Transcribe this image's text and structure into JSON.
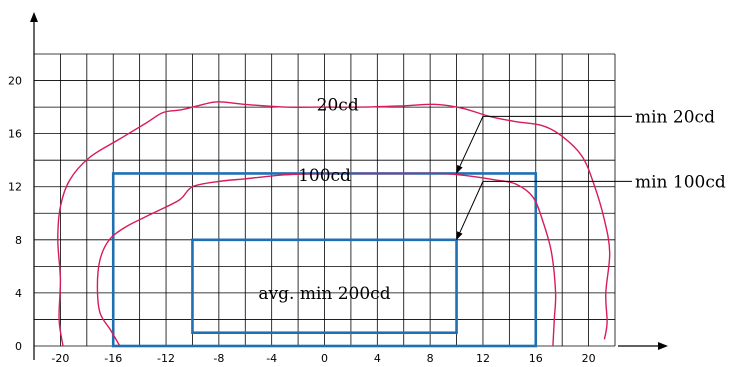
{
  "chart_data": {
    "type": "line",
    "title": "",
    "xlabel": "",
    "ylabel": "",
    "xlim": [
      -22,
      22
    ],
    "ylim": [
      0,
      22
    ],
    "x_ticks": [
      -20,
      -16,
      -12,
      -8,
      -4,
      0,
      4,
      8,
      12,
      16,
      20
    ],
    "y_ticks": [
      0,
      4,
      8,
      12,
      16,
      20
    ],
    "grid": true,
    "colors": {
      "grid": "#000000",
      "isolux": "#d81b5a",
      "rect": "#1f6fb2",
      "text": "#000000"
    },
    "isolux_curves": [
      {
        "label": "20cd",
        "label_at": [
          1,
          18.2
        ],
        "points": [
          [
            -19.8,
            0
          ],
          [
            -20.1,
            2
          ],
          [
            -20.0,
            5
          ],
          [
            -20.2,
            8
          ],
          [
            -20.0,
            10.5
          ],
          [
            -19.3,
            12.5
          ],
          [
            -17.8,
            14.2
          ],
          [
            -15.5,
            15.6
          ],
          [
            -13.5,
            16.8
          ],
          [
            -12.2,
            17.6
          ],
          [
            -10.8,
            17.8
          ],
          [
            -9.2,
            18.2
          ],
          [
            -8.0,
            18.4
          ],
          [
            -6,
            18.2
          ],
          [
            -3,
            18.0
          ],
          [
            0,
            18.0
          ],
          [
            3,
            18.0
          ],
          [
            6,
            18.1
          ],
          [
            8.5,
            18.2
          ],
          [
            10.5,
            17.9
          ],
          [
            12.5,
            17.3
          ],
          [
            14.5,
            16.9
          ],
          [
            16.5,
            16.6
          ],
          [
            18.0,
            15.8
          ],
          [
            19.5,
            14.3
          ],
          [
            20.4,
            12.2
          ],
          [
            21.2,
            9.5
          ],
          [
            21.6,
            7.0
          ],
          [
            21.3,
            4.0
          ],
          [
            21.4,
            1.8
          ],
          [
            21.2,
            0.5
          ]
        ]
      },
      {
        "label": "100cd",
        "label_at": [
          0,
          12.9
        ],
        "points": [
          [
            -15.5,
            0
          ],
          [
            -16.2,
            1.2
          ],
          [
            -17.0,
            2.5
          ],
          [
            -17.2,
            4.5
          ],
          [
            -17.0,
            6.5
          ],
          [
            -16.3,
            8.0
          ],
          [
            -15.0,
            9.0
          ],
          [
            -13.0,
            10.0
          ],
          [
            -11.0,
            11.0
          ],
          [
            -10.0,
            12.0
          ],
          [
            -8.0,
            12.4
          ],
          [
            -6.0,
            12.6
          ],
          [
            -3.0,
            12.9
          ],
          [
            0,
            13.0
          ],
          [
            3.0,
            13.0
          ],
          [
            6.0,
            13.0
          ],
          [
            9.0,
            13.0
          ],
          [
            11.0,
            12.8
          ],
          [
            13.0,
            12.5
          ],
          [
            14.5,
            12.2
          ],
          [
            15.8,
            11.2
          ],
          [
            16.6,
            9.2
          ],
          [
            17.2,
            7.0
          ],
          [
            17.5,
            4.0
          ],
          [
            17.4,
            2.0
          ],
          [
            17.3,
            0
          ]
        ]
      }
    ],
    "rectangles": [
      {
        "name": "outer",
        "x": [
          -16,
          16
        ],
        "y": [
          0,
          13
        ]
      },
      {
        "name": "inner",
        "x": [
          -10,
          10
        ],
        "y": [
          1,
          8
        ],
        "label": "avg. min 200cd",
        "label_at": [
          0,
          4
        ]
      }
    ],
    "annotations": [
      {
        "text": "min 20cd",
        "target": [
          10,
          13
        ],
        "elbow": [
          12,
          17.3
        ]
      },
      {
        "text": "min 100cd",
        "target": [
          10,
          8
        ],
        "elbow": [
          12,
          12.4
        ]
      }
    ]
  }
}
